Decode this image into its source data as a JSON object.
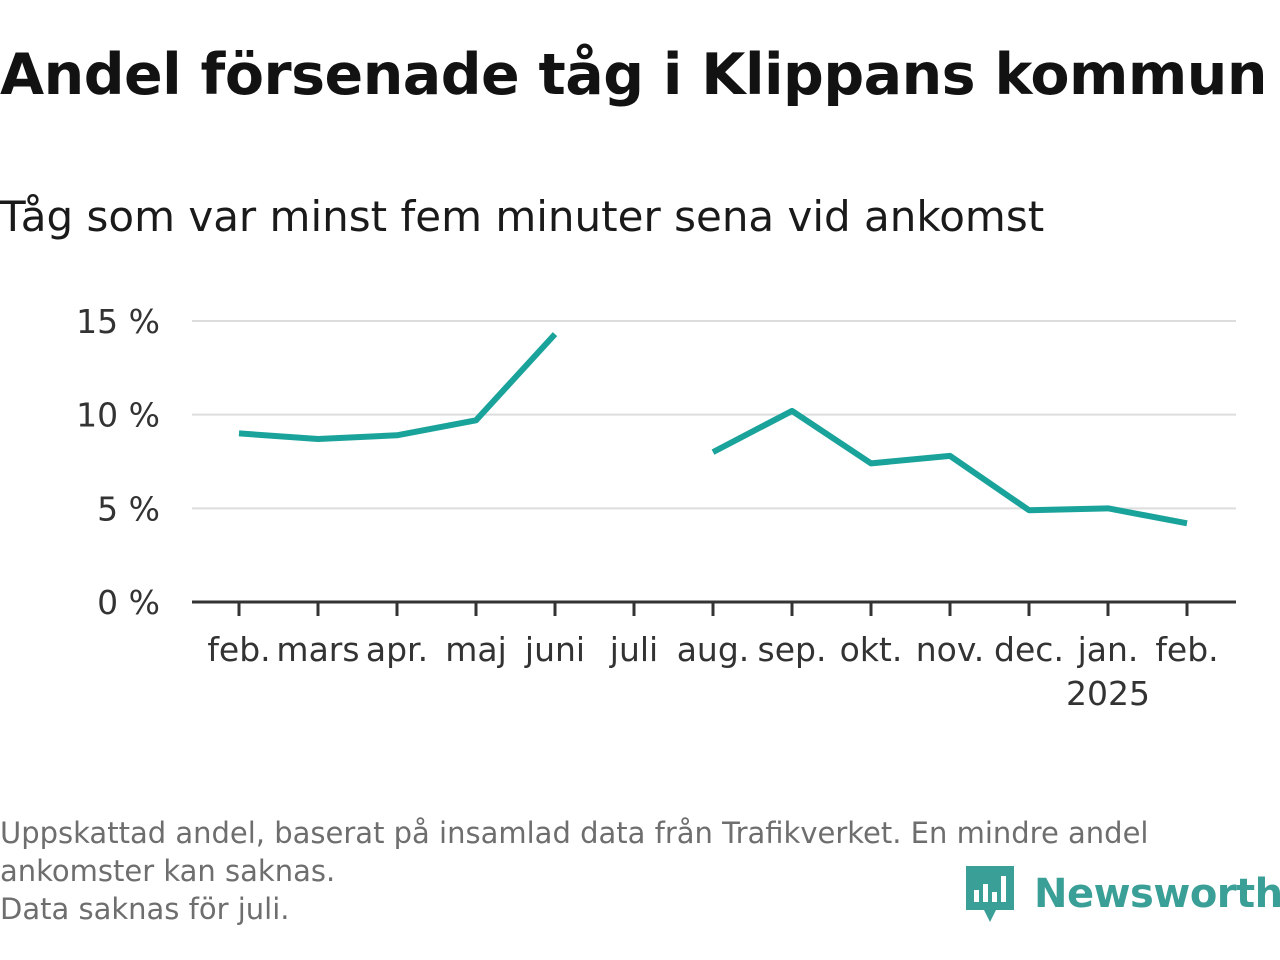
{
  "chart_data": {
    "type": "line",
    "title": "Andel försenade tåg i Klippans kommun",
    "subtitle": "Tåg som var minst fem minuter sena vid ankomst",
    "categories": [
      "feb.",
      "mars",
      "apr.",
      "maj",
      "juni",
      "juli",
      "aug.",
      "sep.",
      "okt.",
      "nov.",
      "dec.",
      "jan.",
      "feb."
    ],
    "category_sublabels": [
      "",
      "",
      "",
      "",
      "",
      "",
      "",
      "",
      "",
      "",
      "",
      "2025",
      ""
    ],
    "series": [
      {
        "values": [
          9.0,
          8.7,
          8.9,
          9.7,
          14.3,
          null,
          8.0,
          10.2,
          7.4,
          7.8,
          4.9,
          5.0,
          4.2
        ],
        "color": "#1aa39a"
      }
    ],
    "ylim": [
      0,
      15
    ],
    "yticks": [
      0,
      5,
      10,
      15
    ],
    "ytick_labels": [
      "0 %",
      "5 %",
      "10 %",
      "15 %"
    ],
    "grid": true,
    "footnote": [
      "Uppskattad andel, baserat på insamlad data från Trafikverket. En mindre andel",
      "ankomster kan saknas.",
      "Data saknas för juli."
    ]
  },
  "brand": {
    "name": "Newsworthy",
    "color": "#3a9f96",
    "icon": "newsworthy-logo-icon"
  }
}
